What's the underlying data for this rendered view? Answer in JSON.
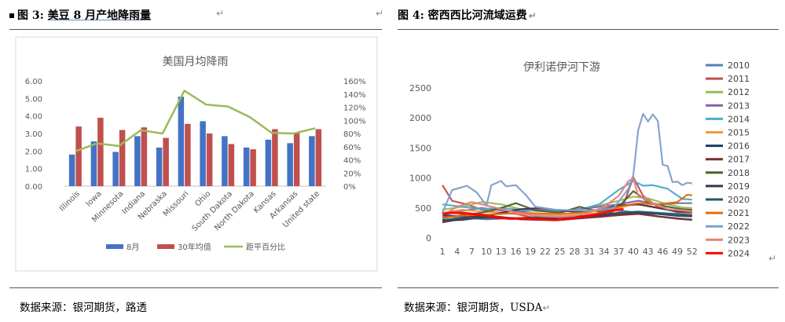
{
  "left": {
    "figure_label": "图 3:",
    "figure_title": "美豆 8 月产地降雨量",
    "source": "数据来源：银河期货，路透"
  },
  "right": {
    "figure_label": "图 4:",
    "figure_title": "密西西比河流域运费",
    "source": "数据来源：银河期货，USDA"
  },
  "chart_data": [
    {
      "type": "bar",
      "title": "美国月均降雨",
      "categories": [
        "Illinois",
        "Iowa",
        "Minnesota",
        "Indiana",
        "Nebraska",
        "Missouri",
        "Ohio",
        "South Dakota",
        "North Dakota",
        "Kansas",
        "Arkansas",
        "United state"
      ],
      "series": [
        {
          "name": "8月",
          "axis": "left",
          "color": "#4472C4",
          "values": [
            1.8,
            2.55,
            1.95,
            2.85,
            2.2,
            5.1,
            3.7,
            2.85,
            2.2,
            2.65,
            2.45,
            2.85
          ]
        },
        {
          "name": "30年均值",
          "axis": "left",
          "color": "#C0504D",
          "values": [
            3.4,
            3.9,
            3.2,
            3.35,
            2.75,
            3.55,
            3.0,
            2.4,
            2.1,
            3.25,
            3.05,
            3.25
          ]
        },
        {
          "name": "距平百分比",
          "axis": "right",
          "type": "line",
          "color": "#9BBB59",
          "values": [
            53,
            65,
            61,
            85,
            80,
            145,
            124,
            121,
            105,
            81,
            80,
            88
          ]
        }
      ],
      "left_ticks": [
        "0.00",
        "1.00",
        "2.00",
        "3.00",
        "4.00",
        "5.00",
        "6.00"
      ],
      "right_ticks": [
        "0%",
        "20%",
        "40%",
        "60%",
        "80%",
        "100%",
        "120%",
        "140%",
        "160%"
      ],
      "ylim": [
        0,
        6
      ],
      "y2lim": [
        0,
        160
      ],
      "legend_position": "bottom"
    },
    {
      "type": "line",
      "title": "伊利诺伊河下游",
      "x_ticks": [
        "1",
        "4",
        "7",
        "10",
        "13",
        "16",
        "19",
        "22",
        "25",
        "28",
        "31",
        "34",
        "37",
        "40",
        "43",
        "46",
        "49",
        "52"
      ],
      "y_ticks": [
        "0",
        "500",
        "1000",
        "1500",
        "2000",
        "2500"
      ],
      "ylim": [
        0,
        2500
      ],
      "xlim": [
        1,
        53
      ],
      "legend_position": "right",
      "series": [
        {
          "name": "2010",
          "color": "#4F81BD",
          "values": [
            [
              1,
              360
            ],
            [
              5,
              340
            ],
            [
              10,
              310
            ],
            [
              15,
              330
            ],
            [
              20,
              320
            ],
            [
              25,
              300
            ],
            [
              30,
              330
            ],
            [
              35,
              380
            ],
            [
              38,
              450
            ],
            [
              41,
              420
            ],
            [
              45,
              360
            ],
            [
              49,
              330
            ],
            [
              52,
              310
            ]
          ]
        },
        {
          "name": "2011",
          "color": "#C0504D",
          "values": [
            [
              1,
              880
            ],
            [
              3,
              620
            ],
            [
              6,
              560
            ],
            [
              9,
              470
            ],
            [
              12,
              430
            ],
            [
              16,
              400
            ],
            [
              20,
              330
            ],
            [
              25,
              320
            ],
            [
              30,
              350
            ],
            [
              35,
              400
            ],
            [
              38,
              560
            ],
            [
              40,
              1010
            ],
            [
              42,
              700
            ],
            [
              45,
              520
            ],
            [
              49,
              430
            ],
            [
              52,
              400
            ]
          ]
        },
        {
          "name": "2012",
          "color": "#9BBB59",
          "values": [
            [
              1,
              470
            ],
            [
              5,
              520
            ],
            [
              9,
              600
            ],
            [
              13,
              560
            ],
            [
              17,
              480
            ],
            [
              21,
              470
            ],
            [
              25,
              430
            ],
            [
              29,
              480
            ],
            [
              33,
              540
            ],
            [
              37,
              620
            ],
            [
              40,
              690
            ],
            [
              43,
              660
            ],
            [
              47,
              560
            ],
            [
              50,
              510
            ],
            [
              52,
              500
            ]
          ]
        },
        {
          "name": "2013",
          "color": "#8064A2",
          "values": [
            [
              1,
              420
            ],
            [
              5,
              450
            ],
            [
              9,
              500
            ],
            [
              13,
              460
            ],
            [
              17,
              440
            ],
            [
              21,
              470
            ],
            [
              25,
              430
            ],
            [
              29,
              480
            ],
            [
              33,
              520
            ],
            [
              37,
              560
            ],
            [
              41,
              620
            ],
            [
              45,
              560
            ],
            [
              49,
              580
            ],
            [
              52,
              580
            ]
          ]
        },
        {
          "name": "2014",
          "color": "#4BACC6",
          "values": [
            [
              1,
              560
            ],
            [
              5,
              520
            ],
            [
              9,
              480
            ],
            [
              13,
              500
            ],
            [
              17,
              470
            ],
            [
              21,
              450
            ],
            [
              25,
              450
            ],
            [
              29,
              470
            ],
            [
              33,
              560
            ],
            [
              37,
              800
            ],
            [
              40,
              950
            ],
            [
              42,
              870
            ],
            [
              44,
              880
            ],
            [
              47,
              820
            ],
            [
              50,
              650
            ],
            [
              52,
              640
            ]
          ]
        },
        {
          "name": "2015",
          "color": "#F79646",
          "values": [
            [
              1,
              420
            ],
            [
              5,
              470
            ],
            [
              9,
              440
            ],
            [
              13,
              420
            ],
            [
              17,
              400
            ],
            [
              21,
              390
            ],
            [
              25,
              370
            ],
            [
              29,
              390
            ],
            [
              33,
              420
            ],
            [
              37,
              500
            ],
            [
              40,
              560
            ],
            [
              43,
              540
            ],
            [
              47,
              470
            ],
            [
              50,
              420
            ],
            [
              52,
              410
            ]
          ]
        },
        {
          "name": "2016",
          "color": "#1F3864",
          "values": [
            [
              1,
              380
            ],
            [
              5,
              360
            ],
            [
              9,
              350
            ],
            [
              13,
              330
            ],
            [
              17,
              330
            ],
            [
              21,
              320
            ],
            [
              25,
              330
            ],
            [
              29,
              360
            ],
            [
              33,
              380
            ],
            [
              37,
              400
            ],
            [
              41,
              420
            ],
            [
              45,
              400
            ],
            [
              49,
              370
            ],
            [
              52,
              360
            ]
          ]
        },
        {
          "name": "2017",
          "color": "#7F2A2A",
          "values": [
            [
              1,
              260
            ],
            [
              5,
              320
            ],
            [
              9,
              380
            ],
            [
              13,
              350
            ],
            [
              17,
              310
            ],
            [
              21,
              300
            ],
            [
              25,
              300
            ],
            [
              29,
              330
            ],
            [
              33,
              350
            ],
            [
              37,
              380
            ],
            [
              41,
              400
            ],
            [
              45,
              360
            ],
            [
              49,
              320
            ],
            [
              52,
              300
            ]
          ]
        },
        {
          "name": "2018",
          "color": "#4F6228",
          "values": [
            [
              1,
              330
            ],
            [
              5,
              380
            ],
            [
              9,
              420
            ],
            [
              13,
              500
            ],
            [
              16,
              580
            ],
            [
              20,
              460
            ],
            [
              25,
              420
            ],
            [
              29,
              520
            ],
            [
              33,
              440
            ],
            [
              37,
              520
            ],
            [
              40,
              780
            ],
            [
              43,
              600
            ],
            [
              47,
              520
            ],
            [
              50,
              480
            ],
            [
              52,
              470
            ]
          ]
        },
        {
          "name": "2019",
          "color": "#3F3151",
          "values": [
            [
              1,
              290
            ],
            [
              5,
              300
            ],
            [
              9,
              340
            ],
            [
              13,
              420
            ],
            [
              17,
              480
            ],
            [
              21,
              500
            ],
            [
              25,
              460
            ],
            [
              29,
              430
            ],
            [
              33,
              470
            ],
            [
              37,
              540
            ],
            [
              41,
              560
            ],
            [
              45,
              500
            ],
            [
              49,
              440
            ],
            [
              52,
              430
            ]
          ]
        },
        {
          "name": "2020",
          "color": "#215967",
          "values": [
            [
              1,
              300
            ],
            [
              5,
              330
            ],
            [
              9,
              330
            ],
            [
              13,
              340
            ],
            [
              17,
              330
            ],
            [
              21,
              350
            ],
            [
              25,
              340
            ],
            [
              29,
              360
            ],
            [
              33,
              390
            ],
            [
              37,
              420
            ],
            [
              41,
              440
            ],
            [
              45,
              420
            ],
            [
              49,
              400
            ],
            [
              52,
              380
            ]
          ]
        },
        {
          "name": "2021",
          "color": "#E46C0A",
          "values": [
            [
              1,
              340
            ],
            [
              5,
              370
            ],
            [
              9,
              390
            ],
            [
              13,
              400
            ],
            [
              17,
              420
            ],
            [
              21,
              410
            ],
            [
              25,
              400
            ],
            [
              29,
              420
            ],
            [
              33,
              460
            ],
            [
              37,
              520
            ],
            [
              41,
              580
            ],
            [
              45,
              560
            ],
            [
              49,
              600
            ],
            [
              51,
              720
            ],
            [
              52,
              710
            ]
          ]
        },
        {
          "name": "2022",
          "color": "#7F9FCF",
          "values": [
            [
              1,
              420
            ],
            [
              3,
              800
            ],
            [
              6,
              870
            ],
            [
              8,
              760
            ],
            [
              10,
              540
            ],
            [
              11,
              880
            ],
            [
              13,
              950
            ],
            [
              14,
              860
            ],
            [
              16,
              880
            ],
            [
              18,
              720
            ],
            [
              20,
              520
            ],
            [
              24,
              470
            ],
            [
              28,
              460
            ],
            [
              32,
              460
            ],
            [
              36,
              500
            ],
            [
              39,
              820
            ],
            [
              40,
              1050
            ],
            [
              41,
              1800
            ],
            [
              42,
              2070
            ],
            [
              43,
              1940
            ],
            [
              44,
              2060
            ],
            [
              45,
              1950
            ],
            [
              46,
              1220
            ],
            [
              47,
              1200
            ],
            [
              48,
              930
            ],
            [
              49,
              940
            ],
            [
              50,
              880
            ],
            [
              51,
              920
            ],
            [
              52,
              910
            ]
          ]
        },
        {
          "name": "2023",
          "color": "#E6827E",
          "values": [
            [
              1,
              380
            ],
            [
              4,
              520
            ],
            [
              7,
              600
            ],
            [
              10,
              540
            ],
            [
              13,
              480
            ],
            [
              16,
              430
            ],
            [
              19,
              380
            ],
            [
              22,
              360
            ],
            [
              25,
              350
            ],
            [
              28,
              370
            ],
            [
              31,
              420
            ],
            [
              34,
              520
            ],
            [
              37,
              700
            ],
            [
              39,
              950
            ],
            [
              40,
              990
            ],
            [
              41,
              700
            ],
            [
              44,
              580
            ],
            [
              47,
              480
            ],
            [
              50,
              460
            ],
            [
              52,
              440
            ]
          ]
        },
        {
          "name": "2024",
          "color": "#FF0000",
          "values": [
            [
              1,
              400
            ],
            [
              3,
              420
            ],
            [
              6,
              410
            ],
            [
              9,
              380
            ],
            [
              12,
              340
            ],
            [
              15,
              320
            ],
            [
              18,
              330
            ],
            [
              21,
              310
            ],
            [
              24,
              300
            ],
            [
              27,
              320
            ],
            [
              30,
              360
            ],
            [
              33,
              400
            ],
            [
              36,
              460
            ],
            [
              38,
              480
            ]
          ]
        }
      ]
    }
  ]
}
